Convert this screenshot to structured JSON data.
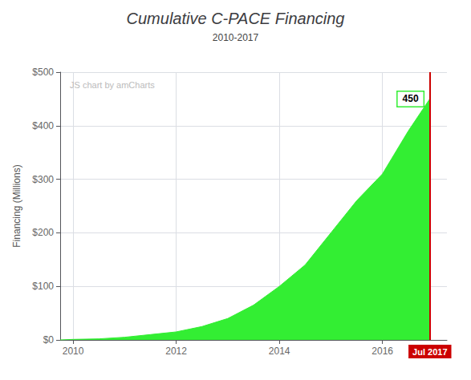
{
  "chart_data": {
    "type": "area",
    "title": "Cumulative C-PACE Financing",
    "subtitle": "2010-2017",
    "watermark": "JS chart by amCharts",
    "ylabel": "Financing (Millions)",
    "x": [
      2009.75,
      2010.0,
      2010.5,
      2011.0,
      2011.5,
      2012.0,
      2012.5,
      2013.0,
      2013.5,
      2014.0,
      2014.5,
      2015.0,
      2015.5,
      2016.0,
      2016.5,
      2016.917
    ],
    "values": [
      0,
      1,
      2,
      5,
      10,
      15,
      25,
      40,
      65,
      100,
      140,
      200,
      260,
      310,
      390,
      450
    ],
    "color": "#33ee33",
    "xlim": [
      2009.75,
      2017.25
    ],
    "ylim": [
      0,
      500
    ],
    "xticks": [
      2010,
      2012,
      2014,
      2016
    ],
    "yticks": [
      {
        "value": 0,
        "label": "$0"
      },
      {
        "value": 100,
        "label": "$100"
      },
      {
        "value": 200,
        "label": "$200"
      },
      {
        "value": 300,
        "label": "$300"
      },
      {
        "value": 400,
        "label": "$400"
      },
      {
        "value": 500,
        "label": "$500"
      }
    ],
    "grid": true,
    "annotations": [
      {
        "text": "450",
        "x": 2016.917,
        "y": 450
      }
    ],
    "vlines": [
      {
        "x": 2016.917,
        "label": "Jul 2017",
        "color": "#cc0000"
      }
    ]
  }
}
